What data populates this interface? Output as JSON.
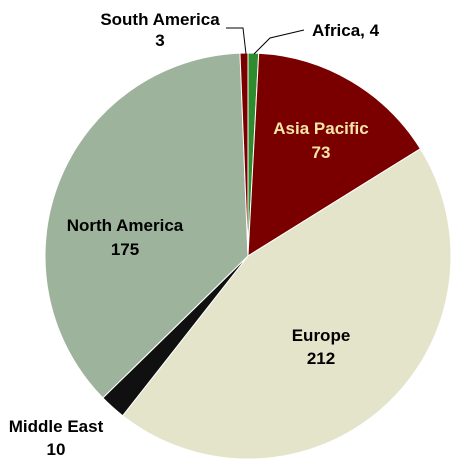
{
  "chart_data": {
    "type": "pie",
    "categories": [
      "Africa",
      "Asia Pacific",
      "Europe",
      "Middle East",
      "North America",
      "South America"
    ],
    "values": [
      4,
      73,
      212,
      10,
      175,
      3
    ],
    "colors": [
      "#2e8b2e",
      "#7a0000",
      "#e4e4cb",
      "#101010",
      "#9db39c",
      "#7a0000"
    ],
    "labels": [
      {
        "name": "Africa",
        "value": "4",
        "text": "Africa, 4"
      },
      {
        "name": "Asia Pacific",
        "value": "73"
      },
      {
        "name": "Europe",
        "value": "212"
      },
      {
        "name": "Middle East",
        "value": "10"
      },
      {
        "name": "North America",
        "value": "175"
      },
      {
        "name": "South America",
        "value": "3"
      }
    ],
    "title": "",
    "legend": "none"
  }
}
